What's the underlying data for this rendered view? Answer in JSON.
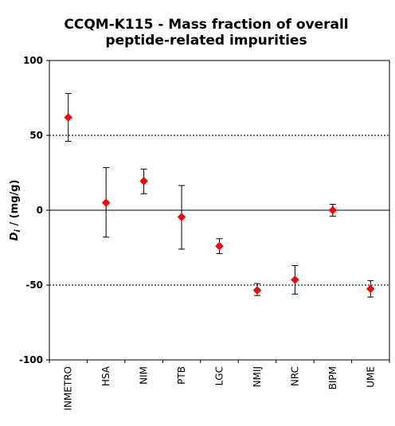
{
  "chart_data": {
    "type": "scatter",
    "title_line1": "CCQM-K115 - Mass fraction of overall",
    "title_line2": "peptide-related impurities",
    "ylabel_symbol": "D",
    "ylabel_sub": "i",
    "ylabel_unit": " / (mg/g)",
    "xlabel": "",
    "ylim": [
      -100,
      100
    ],
    "yticks": [
      100,
      50,
      0,
      -50,
      -100
    ],
    "reference_lines": [
      50,
      0,
      -50
    ],
    "marker_color": "#ff0000",
    "categories": [
      "INMETRO",
      "HSA",
      "NIM",
      "PTB",
      "LGC",
      "NMIJ",
      "NRC",
      "BIPM",
      "UME"
    ],
    "values": [
      62,
      5,
      19.5,
      -4.5,
      -24,
      -53.5,
      -46.5,
      0,
      -52.5
    ],
    "err_low": [
      46,
      -18,
      11,
      -26,
      -29,
      -57,
      -56,
      -4,
      -58
    ],
    "err_high": [
      78,
      28.5,
      27.5,
      16.5,
      -19,
      -49,
      -37,
      4,
      -47
    ]
  }
}
